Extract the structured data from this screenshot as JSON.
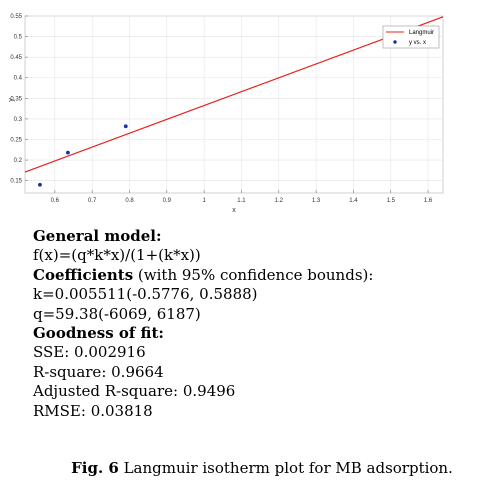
{
  "chart_data": {
    "type": "scatter",
    "title": "",
    "xlabel": "x",
    "ylabel": "y",
    "xlim": [
      0.52,
      1.64
    ],
    "ylim": [
      0.12,
      0.55
    ],
    "x_ticks": [
      "0.6",
      "0.7",
      "0.8",
      "0.9",
      "1",
      "1.1",
      "1.2",
      "1.3",
      "1.4",
      "1.5",
      "1.6"
    ],
    "y_ticks": [
      "0.15",
      "0.2",
      "0.25",
      "0.3",
      "0.35",
      "0.4",
      "0.45",
      "0.5",
      "0.55"
    ],
    "grid": true,
    "legend_position": "top-right",
    "series": [
      {
        "name": "y vs. x",
        "kind": "points",
        "color": "#1a2fa0",
        "points": [
          [
            0.56,
            0.14
          ],
          [
            0.635,
            0.218
          ],
          [
            0.79,
            0.282
          ]
        ]
      },
      {
        "name": "Langmuir",
        "kind": "line",
        "color": "#e8201a",
        "points": [
          [
            0.52,
            0.171
          ],
          [
            1.64,
            0.548
          ]
        ]
      }
    ]
  },
  "text": {
    "general_model_heading": "General model:",
    "equation": "f(x)=(q*k*x)/(1+(k*x))",
    "coefficients_heading": "Coefficients",
    "coefficients_note": " (with 95% confidence bounds):",
    "k_line": "k=0.005511(-0.5776, 0.5888)",
    "q_line": "q=59.38(-6069, 6187)",
    "goodness_heading": "Goodness of fit:",
    "sse": "SSE: 0.002916",
    "rsquare": "R-square: 0.9664",
    "adj_rsquare": "Adjusted R-square: 0.9496",
    "rmse": "RMSE: 0.03818"
  },
  "caption": {
    "label": "Fig. 6",
    "text": " Langmuir isotherm plot for MB adsorption."
  }
}
